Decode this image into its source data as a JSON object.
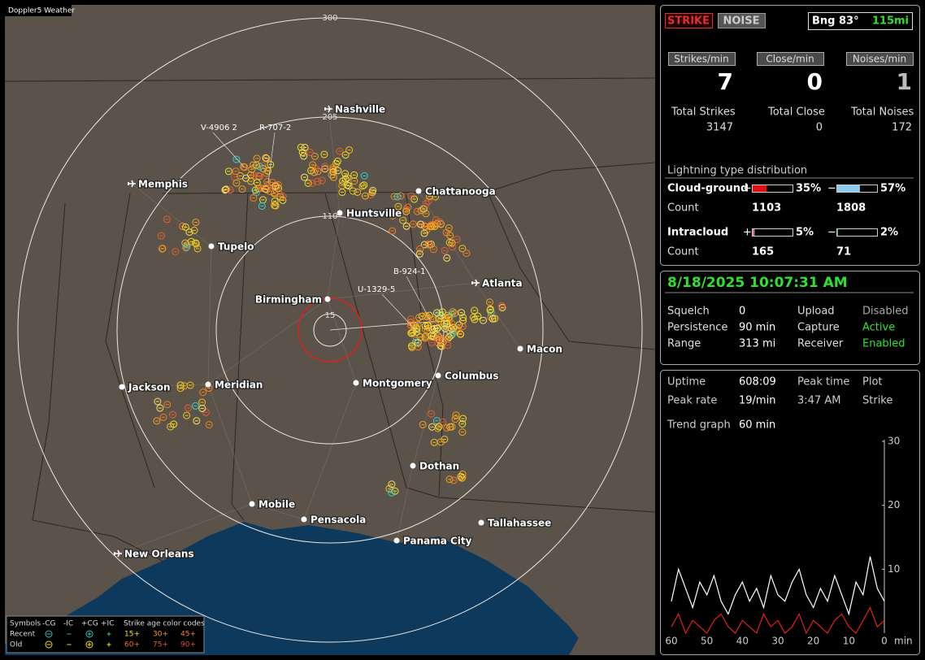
{
  "map": {
    "title": "Doppler5 Weather",
    "range_labels": [
      "300",
      "205",
      "110",
      "15"
    ],
    "cities": [
      {
        "name": "Nashville"
      },
      {
        "name": "Memphis"
      },
      {
        "name": "Chattanooga"
      },
      {
        "name": "Huntsville"
      },
      {
        "name": "Tupelo"
      },
      {
        "name": "Atlanta"
      },
      {
        "name": "Birmingham"
      },
      {
        "name": "Macon"
      },
      {
        "name": "Montgomery"
      },
      {
        "name": "Columbus"
      },
      {
        "name": "Jackson"
      },
      {
        "name": "Meridian"
      },
      {
        "name": "Dothan"
      },
      {
        "name": "Mobile"
      },
      {
        "name": "Pensacola"
      },
      {
        "name": "Tallahassee"
      },
      {
        "name": "Panama City"
      },
      {
        "name": "New Orleans"
      }
    ],
    "strike_labels": [
      "V-4906 2",
      "R-707-2",
      "B-924-1",
      "U-1329-5"
    ],
    "legend": {
      "header": [
        "Symbols",
        "-CG",
        "-IC",
        "+CG",
        "+IC",
        "Strike age color codes"
      ],
      "rows": [
        {
          "label": "Recent",
          "ages": [
            "15+",
            "30+",
            "45+"
          ]
        },
        {
          "label": "Old",
          "ages": [
            "60+",
            "75+",
            "90+"
          ]
        }
      ]
    }
  },
  "panel": {
    "modes": [
      "STRIKE",
      "NOISE"
    ],
    "bearing": "Bng 83°",
    "distance": "115mi",
    "rates": [
      {
        "label": "Strikes/min",
        "value": 7,
        "total_label": "Total Strikes",
        "total": 3147
      },
      {
        "label": "Close/min",
        "value": 0,
        "total_label": "Total Close",
        "total": 0
      },
      {
        "label": "Noises/min",
        "value": 1,
        "total_label": "Total Noises",
        "total": 172
      }
    ],
    "distribution": {
      "title": "Lightning type distribution",
      "count_label": "Count",
      "rows": [
        {
          "name": "Cloud-ground",
          "pos": {
            "sign": "+",
            "percent": {
              "value": 35,
              "label": "35%"
            },
            "count": 1103,
            "color": "#e01010"
          },
          "neg": {
            "sign": "−",
            "percent": {
              "value": 57,
              "label": "57%"
            },
            "count": 1808,
            "color": "#8ccaf0"
          }
        },
        {
          "name": "Intracloud",
          "pos": {
            "sign": "+",
            "percent": {
              "value": 5,
              "label": "5%"
            },
            "count": 165,
            "color": "#e0709a"
          },
          "neg": {
            "sign": "−",
            "percent": {
              "value": 2,
              "label": "2%"
            },
            "count": 71,
            "color": "#30c060"
          }
        }
      ]
    },
    "datetime": "8/18/2025 10:07:31 AM",
    "settings": [
      [
        "Squelch",
        "0",
        "Upload",
        "Disabled"
      ],
      [
        "Persistence",
        "90 min",
        "Capture",
        "Active"
      ],
      [
        "Range",
        "313 mi",
        "Receiver",
        "Enabled"
      ]
    ],
    "stats": [
      [
        "Uptime",
        "608:09",
        "Peak time",
        "Plot"
      ],
      [
        "Peak rate",
        "19/min",
        "3:47 AM",
        "Strike"
      ]
    ],
    "trend_label": "Trend graph",
    "trend_window": "60 min",
    "trend_graph": {
      "x": [
        60,
        58,
        56,
        54,
        52,
        50,
        48,
        46,
        44,
        42,
        40,
        38,
        36,
        34,
        32,
        30,
        28,
        26,
        24,
        22,
        20,
        18,
        16,
        14,
        12,
        10,
        8,
        6,
        4,
        2,
        0
      ],
      "series": [
        {
          "color": "#ffffff",
          "values": [
            5,
            10,
            7,
            4,
            8,
            6,
            9,
            5,
            3,
            6,
            8,
            5,
            7,
            4,
            9,
            6,
            5,
            8,
            10,
            6,
            4,
            7,
            5,
            9,
            6,
            3,
            8,
            6,
            12,
            7,
            5
          ]
        },
        {
          "color": "#e02020",
          "values": [
            1,
            3,
            0,
            2,
            1,
            0,
            2,
            3,
            1,
            0,
            2,
            1,
            0,
            3,
            1,
            2,
            0,
            1,
            3,
            0,
            2,
            1,
            0,
            2,
            3,
            1,
            0,
            2,
            4,
            1,
            2
          ]
        }
      ],
      "xlim": [
        60,
        0
      ],
      "ylim": [
        0,
        30
      ],
      "xticks": [
        60,
        50,
        40,
        30,
        20,
        10,
        0
      ],
      "yticks": [
        30,
        20,
        10
      ],
      "x_unit": "min"
    }
  }
}
